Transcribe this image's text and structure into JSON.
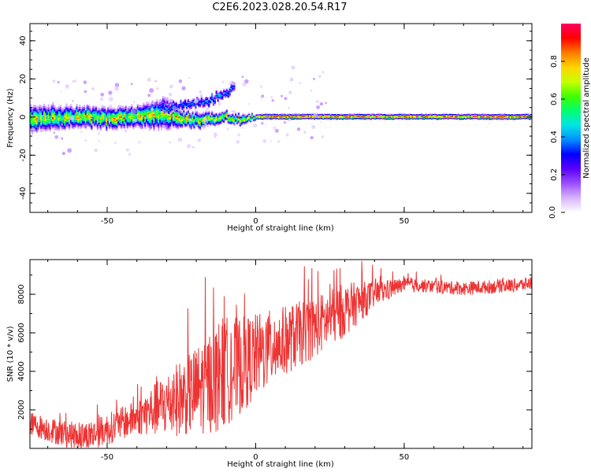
{
  "figure_title": "C2E6.2023.028.20.54.R17",
  "colors": {
    "snr_line": "#ee3333",
    "spectrogram_background": "#ffffff",
    "colormap": [
      "#ffffff",
      "#d7b4ff",
      "#9b4dff",
      "#5a00ff",
      "#0000ff",
      "#0090ff",
      "#00e5e5",
      "#00ff70",
      "#40ff00",
      "#c8ff00",
      "#ffd400",
      "#ff7a00",
      "#ff0000",
      "#ff0060"
    ]
  },
  "chart_data": [
    {
      "type": "heatmap",
      "title": "",
      "xlabel": "Height of straight line (km)",
      "ylabel": "Frequency (Hz)",
      "xlim": [
        -76,
        93
      ],
      "ylim": [
        -50,
        49
      ],
      "xticks": [
        -50,
        0,
        50
      ],
      "yticks": [
        -40,
        -20,
        0,
        20,
        40
      ],
      "grid": false,
      "colorbar": {
        "label": "Normalized spectral amplitude",
        "range": [
          0.0,
          1.0
        ],
        "ticks": [
          "0.0",
          "0.2",
          "0.4",
          "0.6",
          "0.8"
        ]
      },
      "ridge": {
        "description_points_x": [
          -76,
          -60,
          -50,
          -40,
          -30,
          -25,
          -20,
          -10,
          -5,
          0,
          10,
          20,
          50,
          90
        ],
        "center_frequency": [
          -1,
          0,
          -1,
          0,
          2,
          -1,
          -2,
          0,
          -2,
          0,
          0,
          0,
          0,
          0
        ],
        "halfwidth": [
          5,
          4,
          4,
          4,
          6,
          3,
          3,
          2,
          2,
          1,
          1,
          1,
          1,
          1
        ]
      },
      "secondary_branch": {
        "x": [
          -32,
          -25,
          -20,
          -15,
          -10,
          -7
        ],
        "frequency": [
          4,
          6,
          7,
          9,
          13,
          15
        ]
      }
    },
    {
      "type": "line",
      "title": "",
      "xlabel": "Height of straight line (km)",
      "ylabel": "SNR (10 * v/v)",
      "xlim": [
        -76,
        93
      ],
      "ylim": [
        0,
        9800
      ],
      "xticks": [
        -50,
        0,
        50
      ],
      "yticks": [
        2000,
        4000,
        6000,
        8000
      ],
      "grid": false,
      "series": [
        {
          "name": "",
          "trend_x": [
            -76,
            -70,
            -60,
            -55,
            -50,
            -40,
            -30,
            -20,
            -10,
            -5,
            0,
            5,
            10,
            20,
            30,
            40,
            50,
            60,
            70,
            80,
            90,
            93
          ],
          "trend_y": [
            1300,
            1000,
            600,
            700,
            1000,
            1600,
            2300,
            3000,
            4000,
            4300,
            4800,
            5200,
            5600,
            6300,
            7200,
            8000,
            8500,
            8400,
            8300,
            8400,
            8500,
            8600
          ],
          "noise_amplitude_x": [
            -76,
            -40,
            -30,
            -20,
            -12,
            0,
            10,
            30,
            40,
            50,
            93
          ],
          "noise_amplitude": [
            600,
            900,
            1700,
            2300,
            3000,
            2200,
            1800,
            1400,
            700,
            350,
            350
          ]
        }
      ]
    }
  ]
}
